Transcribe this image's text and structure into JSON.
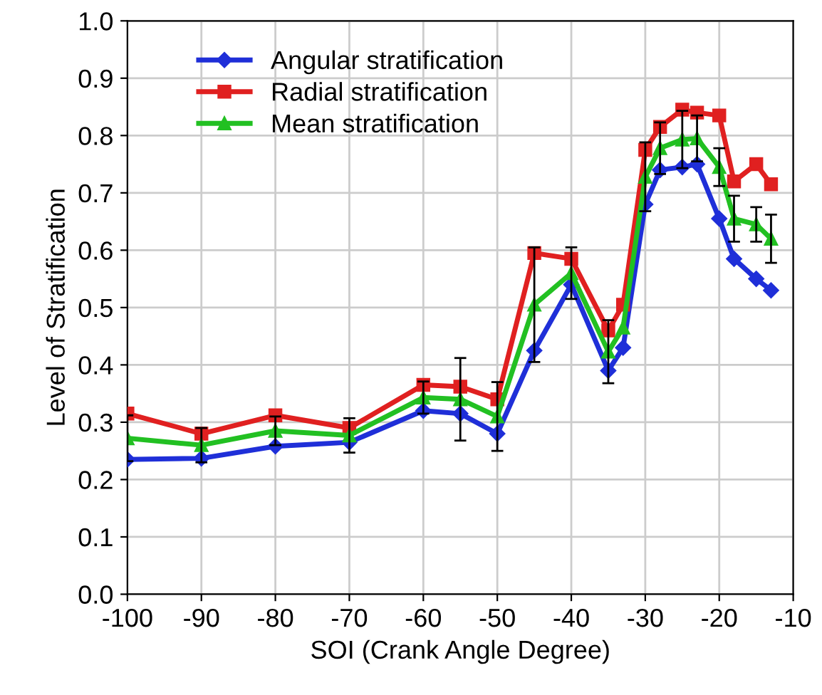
{
  "chart_data": {
    "type": "line",
    "xlabel": "SOI (Crank Angle Degree)",
    "ylabel": "Level of Stratification",
    "x": [
      -100,
      -90,
      -80,
      -70,
      -60,
      -55,
      -50,
      -45,
      -40,
      -35,
      -33,
      -30,
      -28,
      -25,
      -23,
      -20,
      -18,
      -15,
      -13
    ],
    "series": [
      {
        "name": "Angular stratification",
        "color": "#1f2fd8",
        "marker": "diamond",
        "values": [
          0.235,
          0.237,
          0.258,
          0.265,
          0.32,
          0.315,
          0.28,
          0.425,
          0.54,
          0.39,
          0.43,
          0.68,
          0.74,
          0.745,
          0.75,
          0.655,
          0.585,
          0.55,
          0.53
        ]
      },
      {
        "name": "Radial stratification",
        "color": "#e02020",
        "marker": "square",
        "values": [
          0.315,
          0.28,
          0.312,
          0.29,
          0.365,
          0.362,
          0.34,
          0.595,
          0.585,
          0.46,
          0.505,
          0.775,
          0.815,
          0.845,
          0.84,
          0.835,
          0.72,
          0.75,
          0.715
        ]
      },
      {
        "name": "Mean stratification",
        "color": "#22c022",
        "marker": "triangle",
        "values": [
          0.272,
          0.26,
          0.285,
          0.277,
          0.343,
          0.34,
          0.31,
          0.505,
          0.56,
          0.423,
          0.465,
          0.728,
          0.778,
          0.793,
          0.795,
          0.745,
          0.655,
          0.645,
          0.62
        ],
        "errors": [
          0.04,
          0.03,
          0.025,
          0.03,
          0.028,
          0.072,
          0.06,
          0.1,
          0.045,
          0.055,
          null,
          0.06,
          0.045,
          0.05,
          0.04,
          0.033,
          0.04,
          0.03,
          0.042
        ]
      }
    ],
    "xlim": [
      -100,
      -10
    ],
    "xticks": [
      -100,
      -90,
      -80,
      -70,
      -60,
      -50,
      -40,
      -30,
      -20,
      -10
    ],
    "ylim": [
      0.0,
      1.0
    ],
    "yticks": [
      {
        "value": 0,
        "label": "0.0"
      },
      {
        "value": 0.1,
        "label": "0.1"
      },
      {
        "value": 0.2,
        "label": "0.2"
      },
      {
        "value": 0.3,
        "label": "0.3"
      },
      {
        "value": 0.4,
        "label": "0.4"
      },
      {
        "value": 0.5,
        "label": "0.5"
      },
      {
        "value": 0.6,
        "label": "0.6"
      },
      {
        "value": 0.7,
        "label": "0.7"
      },
      {
        "value": 0.8,
        "label": "0.8"
      },
      {
        "value": 0.9,
        "label": "0.9"
      },
      {
        "value": 1,
        "label": "1.0"
      }
    ],
    "grid": true,
    "legend": "top left",
    "line_style": "solid"
  }
}
